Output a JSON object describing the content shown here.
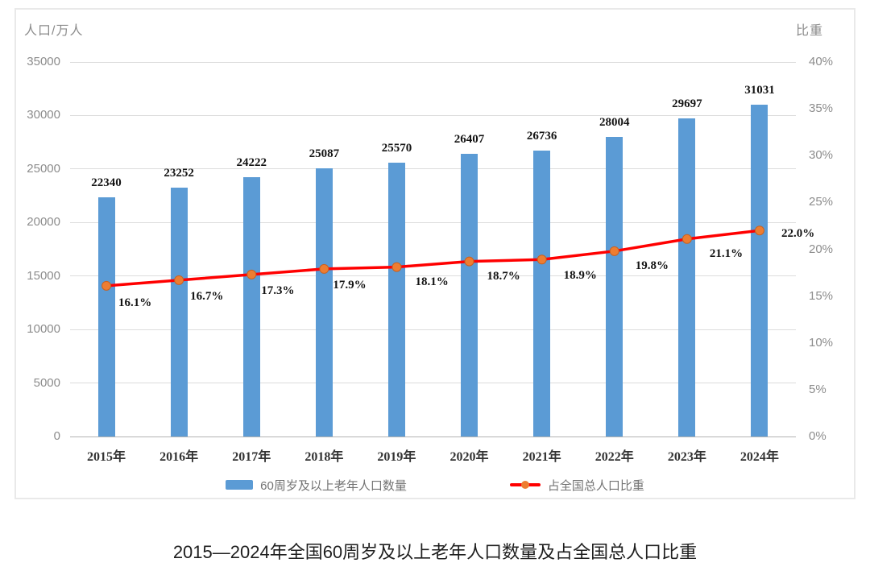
{
  "chart_data": {
    "type": "bar+line",
    "title": "2015—2024年全国60周岁及以上老年人口数量及占全国总人口比重",
    "grid": true,
    "legend_position": "bottom-inside",
    "categories": [
      "2015年",
      "2016年",
      "2017年",
      "2018年",
      "2019年",
      "2020年",
      "2021年",
      "2022年",
      "2023年",
      "2024年"
    ],
    "left_axis": {
      "title": "人口/万人",
      "min": 0,
      "max": 35000,
      "step": 5000,
      "ticks": [
        "0",
        "5000",
        "10000",
        "15000",
        "20000",
        "25000",
        "30000",
        "35000"
      ]
    },
    "right_axis": {
      "title": "比重",
      "min": 0,
      "max": 40,
      "step": 5,
      "ticks": [
        "0%",
        "5%",
        "10%",
        "15%",
        "20%",
        "25%",
        "30%",
        "35%",
        "40%"
      ]
    },
    "series": [
      {
        "name": "60周岁及以上老年人口数量",
        "type": "bar",
        "axis": "left",
        "color": "#5B9BD5",
        "values": [
          22340,
          23252,
          24222,
          25087,
          25570,
          26407,
          26736,
          28004,
          29697,
          31031
        ],
        "labels": [
          "22340",
          "23252",
          "24222",
          "25087",
          "25570",
          "26407",
          "26736",
          "28004",
          "29697",
          "31031"
        ]
      },
      {
        "name": "占全国总人口比重",
        "type": "line",
        "axis": "right",
        "color": "#FF0000",
        "marker_color": "#ED7D31",
        "values": [
          16.1,
          16.7,
          17.3,
          17.9,
          18.1,
          18.7,
          18.9,
          19.8,
          21.1,
          22.0
        ],
        "labels": [
          "16.1%",
          "16.7%",
          "17.3%",
          "17.9%",
          "18.1%",
          "18.7%",
          "18.9%",
          "19.8%",
          "21.1%",
          "22.0%"
        ]
      }
    ]
  },
  "colors": {
    "bar": "#5B9BD5",
    "line": "#FF0000",
    "marker": "#ED7D31",
    "grid": "#dcdcdc",
    "axis_line": "#b3b3b3",
    "tick_text": "#8c8c8c",
    "data_label_text": "#141414",
    "legend_text": "#737373",
    "box_border": "#e9e9e9"
  }
}
